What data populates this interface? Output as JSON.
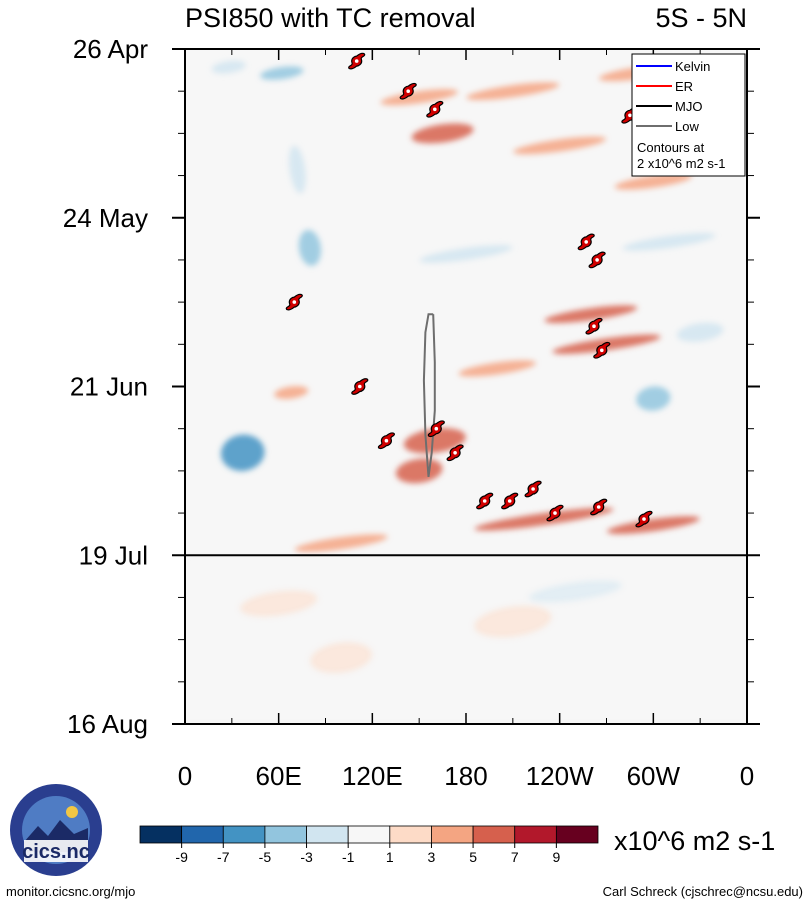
{
  "chart_data": {
    "type": "heatmap",
    "title": "PSI850 with TC removal",
    "subtitle": "5S - 5N",
    "variable": "PSI850 anomaly",
    "units": "x10^6 m2 s-1",
    "x_ticks": [
      {
        "lon": 0,
        "label": "0"
      },
      {
        "lon": 60,
        "label": "60E"
      },
      {
        "lon": 120,
        "label": "120E"
      },
      {
        "lon": 180,
        "label": "180"
      },
      {
        "lon": 240,
        "label": "120W"
      },
      {
        "lon": 300,
        "label": "60W"
      },
      {
        "lon": 360,
        "label": "0"
      }
    ],
    "xlim": [
      0,
      360
    ],
    "y_labels": [
      {
        "day": 0,
        "label": "26 Apr"
      },
      {
        "day": 28,
        "label": "24 May"
      },
      {
        "day": 56,
        "label": "21 Jun"
      },
      {
        "day": 84,
        "label": "19 Jul"
      },
      {
        "day": 112,
        "label": "16 Aug"
      }
    ],
    "ylim_days": [
      0,
      112
    ],
    "forecast_start_day": 84,
    "colorbar": {
      "levels": [
        -9,
        -7,
        -5,
        -3,
        -1,
        1,
        3,
        5,
        7,
        9
      ],
      "level_labels": [
        "-9",
        "-7",
        "-5",
        "-3",
        "-1",
        "1",
        "3",
        "5",
        "7",
        "9"
      ],
      "colors": [
        "#053061",
        "#2166ac",
        "#4393c3",
        "#92c5de",
        "#d1e5f0",
        "#f7f7f7",
        "#fddbc7",
        "#f4a582",
        "#d6604d",
        "#b2182b",
        "#67001f"
      ]
    },
    "anomaly_features": [
      {
        "lon": 28,
        "day": 3,
        "value": -3,
        "span_lon": 22,
        "span_day": 2
      },
      {
        "lon": 62,
        "day": 4,
        "value": -4,
        "span_lon": 28,
        "span_day": 2
      },
      {
        "lon": 150,
        "day": 8,
        "value": 3,
        "span_lon": 50,
        "span_day": 2
      },
      {
        "lon": 210,
        "day": 7,
        "value": 4,
        "span_lon": 60,
        "span_day": 2
      },
      {
        "lon": 290,
        "day": 4,
        "value": 3,
        "span_lon": 50,
        "span_day": 2
      },
      {
        "lon": 165,
        "day": 14,
        "value": 5,
        "span_lon": 40,
        "span_day": 3
      },
      {
        "lon": 240,
        "day": 16,
        "value": 4,
        "span_lon": 60,
        "span_day": 2
      },
      {
        "lon": 300,
        "day": 22,
        "value": 3,
        "span_lon": 50,
        "span_day": 2
      },
      {
        "lon": 72,
        "day": 20,
        "value": -3,
        "span_lon": 10,
        "span_day": 8
      },
      {
        "lon": 80,
        "day": 33,
        "value": -5,
        "span_lon": 14,
        "span_day": 6
      },
      {
        "lon": 180,
        "day": 34,
        "value": -3,
        "span_lon": 60,
        "span_day": 2
      },
      {
        "lon": 310,
        "day": 32,
        "value": -3,
        "span_lon": 60,
        "span_day": 2
      },
      {
        "lon": 260,
        "day": 44,
        "value": 5,
        "span_lon": 60,
        "span_day": 2
      },
      {
        "lon": 270,
        "day": 49,
        "value": 6,
        "span_lon": 70,
        "span_day": 2
      },
      {
        "lon": 200,
        "day": 53,
        "value": 3,
        "span_lon": 50,
        "span_day": 2
      },
      {
        "lon": 330,
        "day": 47,
        "value": -3,
        "span_lon": 30,
        "span_day": 3
      },
      {
        "lon": 68,
        "day": 57,
        "value": 3,
        "span_lon": 22,
        "span_day": 2
      },
      {
        "lon": 300,
        "day": 58,
        "value": -4,
        "span_lon": 22,
        "span_day": 4
      },
      {
        "lon": 37,
        "day": 67,
        "value": -7,
        "span_lon": 28,
        "span_day": 6
      },
      {
        "lon": 160,
        "day": 65,
        "value": 5,
        "span_lon": 40,
        "span_day": 4
      },
      {
        "lon": 150,
        "day": 70,
        "value": 5,
        "span_lon": 30,
        "span_day": 4
      },
      {
        "lon": 230,
        "day": 78,
        "value": 6,
        "span_lon": 90,
        "span_day": 2
      },
      {
        "lon": 300,
        "day": 79,
        "value": 5,
        "span_lon": 60,
        "span_day": 2
      },
      {
        "lon": 100,
        "day": 82,
        "value": 3,
        "span_lon": 60,
        "span_day": 2
      },
      {
        "lon": 210,
        "day": 95,
        "value": 1.5,
        "span_lon": 50,
        "span_day": 5
      },
      {
        "lon": 100,
        "day": 101,
        "value": 1.5,
        "span_lon": 40,
        "span_day": 5
      },
      {
        "lon": 250,
        "day": 90,
        "value": -1.5,
        "span_lon": 60,
        "span_day": 3
      },
      {
        "lon": 60,
        "day": 92,
        "value": 1.5,
        "span_lon": 50,
        "span_day": 4
      }
    ],
    "tropical_cyclones": [
      {
        "lon": 110,
        "day": 2
      },
      {
        "lon": 143,
        "day": 7
      },
      {
        "lon": 160,
        "day": 10
      },
      {
        "lon": 285,
        "day": 11
      },
      {
        "lon": 257,
        "day": 32
      },
      {
        "lon": 264,
        "day": 35
      },
      {
        "lon": 70,
        "day": 42
      },
      {
        "lon": 262,
        "day": 46
      },
      {
        "lon": 267,
        "day": 50
      },
      {
        "lon": 112,
        "day": 56
      },
      {
        "lon": 129,
        "day": 65
      },
      {
        "lon": 161,
        "day": 63
      },
      {
        "lon": 173,
        "day": 67
      },
      {
        "lon": 192,
        "day": 75
      },
      {
        "lon": 208,
        "day": 75
      },
      {
        "lon": 223,
        "day": 73
      },
      {
        "lon": 237,
        "day": 77
      },
      {
        "lon": 265,
        "day": 76
      },
      {
        "lon": 294,
        "day": 78
      }
    ],
    "mjo_contour": {
      "label": "MJO",
      "color": "#6e6e6e",
      "points": [
        [
          159,
          44
        ],
        [
          160,
          52
        ],
        [
          160,
          60
        ],
        [
          158,
          67
        ],
        [
          156,
          71
        ],
        [
          154,
          64
        ],
        [
          153,
          55
        ],
        [
          154,
          47
        ],
        [
          156,
          44
        ],
        [
          159,
          44
        ]
      ]
    },
    "legend": {
      "position": "top-right",
      "entries": [
        {
          "label": "Kelvin",
          "color": "#0000ff"
        },
        {
          "label": "ER",
          "color": "#ff0000"
        },
        {
          "label": "MJO",
          "color": "#000000"
        },
        {
          "label": "Low",
          "color": "#6e6e6e"
        }
      ],
      "note_line1": "Contours at",
      "note_line2": "2 x10^6 m2 s-1"
    }
  },
  "footer": {
    "logo_text": "cics.nc",
    "left": "monitor.cicsnc.org/mjo",
    "right": "Carl Schreck (cjschrec@ncsu.edu)"
  }
}
